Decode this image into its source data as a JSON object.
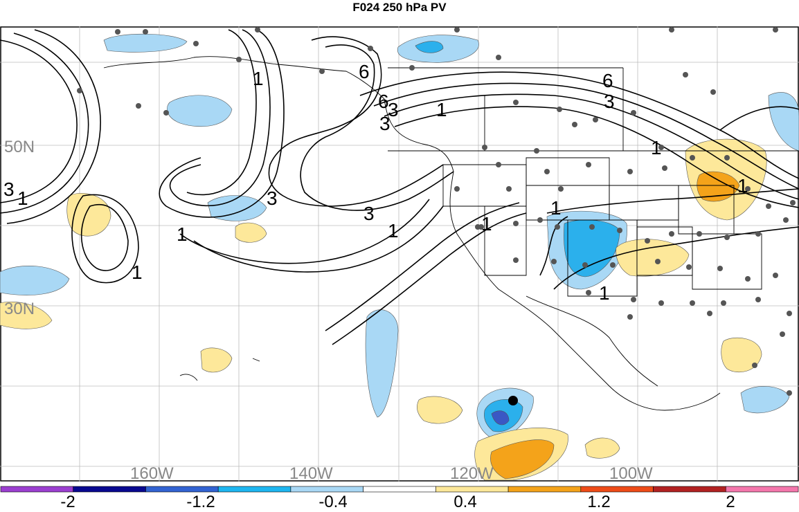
{
  "title": "F024 250 hPa PV",
  "map": {
    "lat_labels": [
      "50N",
      "30N"
    ],
    "lon_labels": [
      "160W",
      "140W",
      "120W",
      "100W"
    ],
    "contour_labels": [
      "6",
      "6",
      "6",
      "3",
      "3",
      "3",
      "3",
      "3",
      "3",
      "1",
      "1",
      "1",
      "1",
      "1",
      "1",
      "1",
      "1",
      "1",
      "1",
      "1"
    ],
    "label_color": "#888888",
    "contour_color": "#000000",
    "positive_shading": [
      "#fde89a",
      "#f4a31a"
    ],
    "negative_shading": [
      "#a9d8f5",
      "#2bb0ec",
      "#3a58c4"
    ]
  },
  "colorbar": {
    "tick_labels": [
      "-2",
      "-1.2",
      "-0.4",
      "0.4",
      "1.2",
      "2"
    ],
    "colors": [
      "#9b3fd0",
      "#08088f",
      "#3263d2",
      "#1eb6f0",
      "#a9d8f5",
      "#ffffff",
      "#fde89a",
      "#f4a31a",
      "#ee4c18",
      "#b22222",
      "#f477ac"
    ]
  }
}
